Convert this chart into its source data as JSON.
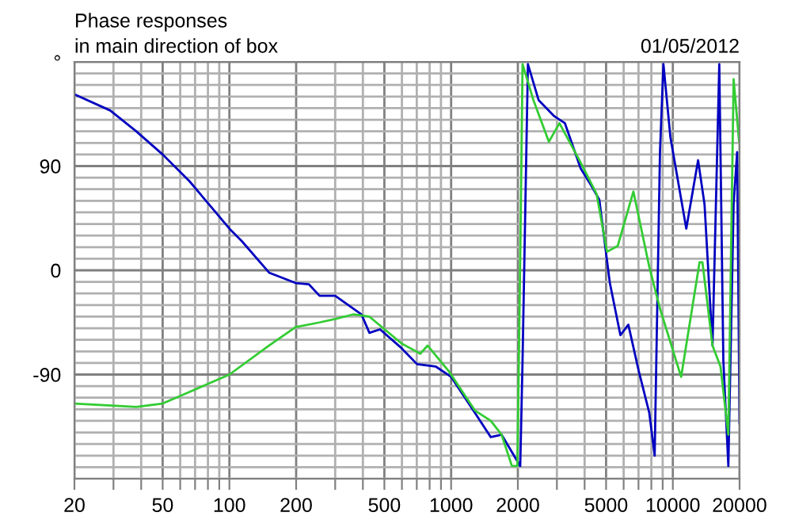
{
  "chart_data": {
    "type": "line",
    "title": "Phase responses",
    "subtitle": "in main direction of box",
    "annotations": [
      "01/05/2012"
    ],
    "log": "x",
    "grid": true,
    "legend": false,
    "xlim": [
      20,
      20000
    ],
    "ylim": [
      -180,
      180
    ],
    "xticks": [
      20,
      {
        "value": 30,
        "label": null
      },
      {
        "value": 40,
        "label": null
      },
      50,
      {
        "value": 60,
        "label": null
      },
      {
        "value": 70,
        "label": null
      },
      {
        "value": 80,
        "label": null
      },
      {
        "value": 90,
        "label": null
      },
      100,
      200,
      {
        "value": 300,
        "label": null
      },
      {
        "value": 400,
        "label": null
      },
      500,
      {
        "value": 600,
        "label": null
      },
      {
        "value": 700,
        "label": null
      },
      {
        "value": 800,
        "label": null
      },
      {
        "value": 900,
        "label": null
      },
      1000,
      2000,
      {
        "value": 3000,
        "label": null
      },
      {
        "value": 4000,
        "label": null
      },
      5000,
      {
        "value": 6000,
        "label": null
      },
      {
        "value": 7000,
        "label": null
      },
      {
        "value": 8000,
        "label": null
      },
      {
        "value": 9000,
        "label": null
      },
      10000,
      20000
    ],
    "yticks": [
      {
        "value": -180,
        "label": null
      },
      {
        "value": -170,
        "label": null
      },
      {
        "value": -160,
        "label": null
      },
      {
        "value": -150,
        "label": null
      },
      {
        "value": -140,
        "label": null
      },
      {
        "value": -130,
        "label": null
      },
      {
        "value": -120,
        "label": null
      },
      {
        "value": -110,
        "label": null
      },
      {
        "value": -100,
        "label": null
      },
      -90,
      {
        "value": -80,
        "label": null
      },
      {
        "value": -70,
        "label": null
      },
      {
        "value": -60,
        "label": null
      },
      {
        "value": -50,
        "label": null
      },
      {
        "value": -40,
        "label": null
      },
      {
        "value": -30,
        "label": null
      },
      {
        "value": -20,
        "label": null
      },
      {
        "value": -10,
        "label": null
      },
      0,
      {
        "value": 10,
        "label": null
      },
      {
        "value": 20,
        "label": null
      },
      {
        "value": 30,
        "label": null
      },
      {
        "value": 40,
        "label": null
      },
      {
        "value": 50,
        "label": null
      },
      {
        "value": 60,
        "label": null
      },
      {
        "value": 70,
        "label": null
      },
      {
        "value": 80,
        "label": null
      },
      90,
      {
        "value": 100,
        "label": null
      },
      {
        "value": 110,
        "label": null
      },
      {
        "value": 120,
        "label": null
      },
      {
        "value": 130,
        "label": null
      },
      {
        "value": 140,
        "label": null
      },
      {
        "value": 150,
        "label": null
      },
      {
        "value": 160,
        "label": null
      },
      {
        "value": 170,
        "label": null
      },
      {
        "value": 180,
        "label": "°"
      }
    ],
    "series": [
      {
        "color": "#0000c0",
        "x": [
          20,
          29,
          38,
          50,
          66,
          100,
          114,
          151,
          199,
          228,
          255,
          300,
          394,
          428,
          478,
          596,
          702,
          851,
          1000,
          1280,
          1510,
          1690,
          2050,
          2100,
          2220,
          2480,
          2920,
          3260,
          3840,
          4290,
          4660,
          5200,
          5800,
          6300,
          7020,
          7830,
          8280,
          8750,
          9070,
          9750,
          11500,
          13000,
          13900,
          15100,
          16200,
          16900,
          17800,
          18800,
          19500,
          20000
        ],
        "values": [
          152,
          138,
          120,
          100,
          77,
          36,
          25,
          -2,
          -11,
          -12,
          -22,
          -22,
          -38,
          -54,
          -51,
          -67,
          -81,
          -83,
          -92,
          -123,
          -144,
          -142,
          -169,
          -78,
          178,
          147,
          133,
          127,
          88,
          73,
          61,
          -11,
          -56,
          -47,
          -87,
          -123,
          -160,
          102,
          178,
          115,
          36,
          95,
          57,
          -65,
          178,
          -78,
          -169,
          57,
          102,
          -132
        ]
      },
      {
        "color": "#33cc33",
        "x": [
          20,
          38,
          50,
          66,
          100,
          151,
          199,
          255,
          300,
          364,
          428,
          596,
          726,
          783,
          975,
          1280,
          1510,
          1690,
          1880,
          1990,
          2050,
          2100,
          2350,
          2760,
          3080,
          3840,
          4530,
          5050,
          5640,
          6640,
          7830,
          8750,
          10900,
          13200,
          13600,
          15100,
          16400,
          17800,
          18800,
          19900
        ],
        "values": [
          -115,
          -118,
          -115,
          -105,
          -90,
          -65,
          -49,
          -45,
          -42,
          -38,
          -40,
          -63,
          -72,
          -65,
          -87,
          -121,
          -130,
          -142,
          -169,
          -169,
          12,
          178,
          147,
          111,
          127,
          93,
          66,
          16,
          21,
          68,
          3,
          -33,
          -92,
          7,
          7,
          -65,
          -83,
          -142,
          165,
          111
        ]
      }
    ]
  }
}
